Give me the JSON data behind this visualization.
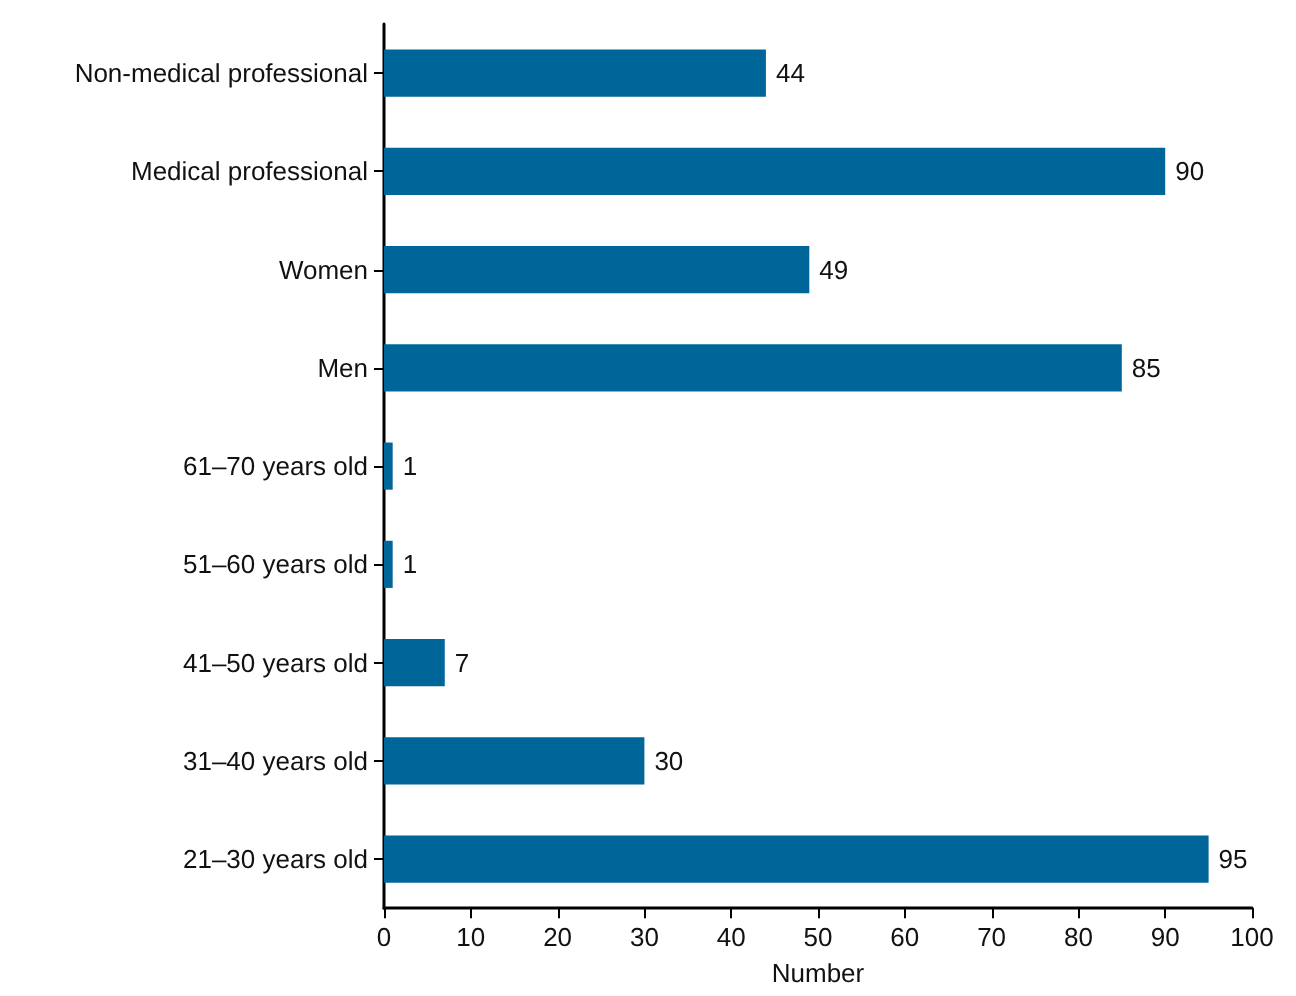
{
  "chart_data": {
    "type": "bar",
    "orientation": "horizontal",
    "xlabel": "Number",
    "categories": [
      "Non-medical professional",
      "Medical professional",
      "Women",
      "Men",
      "61–70 years old",
      "51–60 years old",
      "41–50 years old",
      "31–40 years old",
      "21–30 years old"
    ],
    "values": [
      44,
      90,
      49,
      85,
      1,
      1,
      7,
      30,
      95
    ],
    "color": "#00669a",
    "xlim": [
      0,
      100
    ],
    "xticks": [
      0,
      10,
      20,
      30,
      40,
      50,
      60,
      70,
      80,
      90,
      100
    ],
    "data_labels": true,
    "grid": false
  }
}
